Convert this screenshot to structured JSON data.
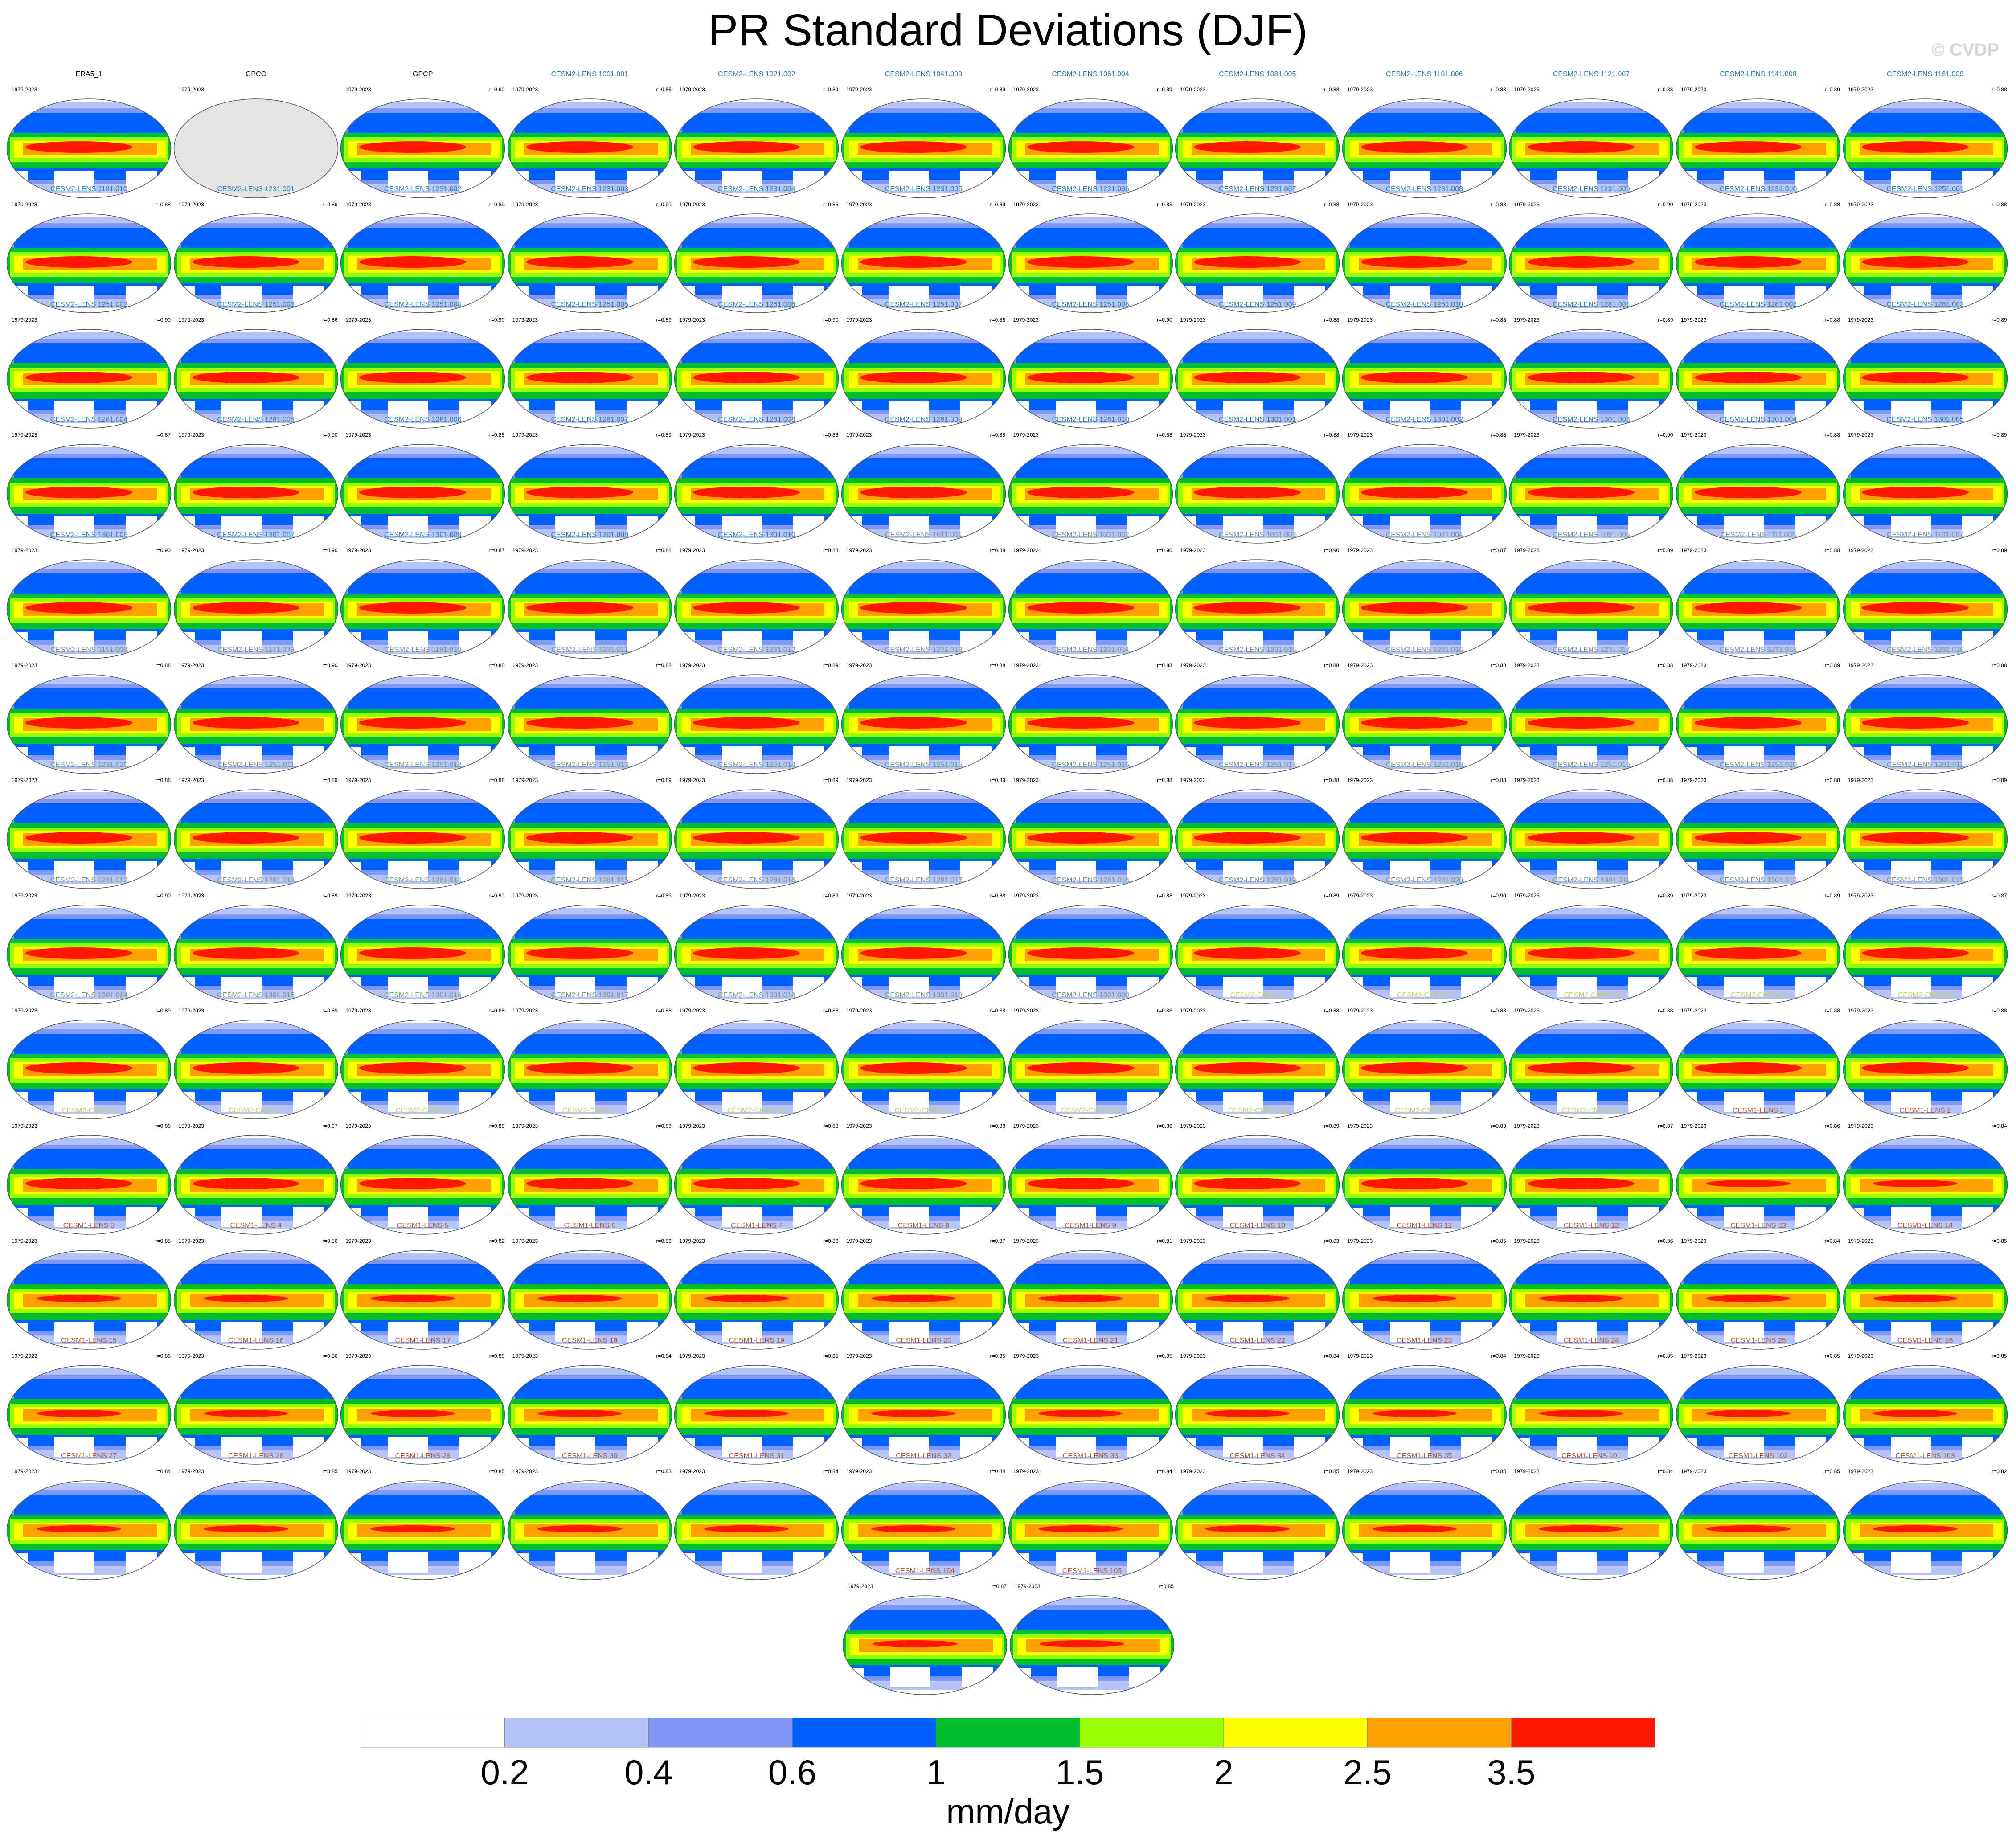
{
  "title": "PR Standard Deviations (DJF)",
  "watermark": "© CVDP",
  "colorbar": {
    "units": "mm/day",
    "tick_labels": [
      "0.2",
      "0.4",
      "0.6",
      "1",
      "1.5",
      "2",
      "2.5",
      "3.5"
    ],
    "colors": [
      "#ffffff",
      "#b4c4f8",
      "#7f98f8",
      "#0060ff",
      "#00c030",
      "#98ff00",
      "#ffff00",
      "#ffa000",
      "#ff1800"
    ]
  },
  "panel_defaults": {
    "years": "1979-2023"
  },
  "panels": [
    {
      "title": "ERA5_1",
      "r": "",
      "kind": "obs"
    },
    {
      "title": "GPCC",
      "r": "",
      "kind": "gpcc"
    },
    {
      "title": "GPCP",
      "r": "r=0.90",
      "kind": "obs"
    },
    {
      "title": "CESM2-LENS 1001.001",
      "r": "r=0.86",
      "kind": "cesm2"
    },
    {
      "title": "CESM2-LENS 1021.002",
      "r": "r=0.89",
      "kind": "cesm2"
    },
    {
      "title": "CESM2-LENS 1041.003",
      "r": "r=0.89",
      "kind": "cesm2"
    },
    {
      "title": "CESM2-LENS 1061.004",
      "r": "r=0.89",
      "kind": "cesm2"
    },
    {
      "title": "CESM2-LENS 1081.005",
      "r": "r=0.88",
      "kind": "cesm2"
    },
    {
      "title": "CESM2-LENS 1101.006",
      "r": "r=0.88",
      "kind": "cesm2"
    },
    {
      "title": "CESM2-LENS 1121.007",
      "r": "r=0.88",
      "kind": "cesm2"
    },
    {
      "title": "CESM2-LENS 1141.008",
      "r": "r=0.89",
      "kind": "cesm2"
    },
    {
      "title": "CESM2-LENS 1161.009",
      "r": "r=0.88",
      "kind": "cesm2"
    },
    {
      "title": "CESM2-LENS 1181.010",
      "r": "r=0.88",
      "kind": "cesm2"
    },
    {
      "title": "CESM2-LENS 1231.001",
      "r": "r=0.89",
      "kind": "cesm2"
    },
    {
      "title": "CESM2-LENS 1231.002",
      "r": "r=0.89",
      "kind": "cesm2"
    },
    {
      "title": "CESM2-LENS 1231.003",
      "r": "r=0.90",
      "kind": "cesm2"
    },
    {
      "title": "CESM2-LENS 1231.004",
      "r": "r=0.86",
      "kind": "cesm2"
    },
    {
      "title": "CESM2-LENS 1231.005",
      "r": "r=0.89",
      "kind": "cesm2"
    },
    {
      "title": "CESM2-LENS 1231.006",
      "r": "r=0.88",
      "kind": "cesm2"
    },
    {
      "title": "CESM2-LENS 1231.007",
      "r": "r=0.88",
      "kind": "cesm2"
    },
    {
      "title": "CESM2-LENS 1231.008",
      "r": "r=0.88",
      "kind": "cesm2"
    },
    {
      "title": "CESM2-LENS 1231.009",
      "r": "r=0.90",
      "kind": "cesm2"
    },
    {
      "title": "CESM2-LENS 1231.010",
      "r": "r=0.88",
      "kind": "cesm2"
    },
    {
      "title": "CESM2-LENS 1251.001",
      "r": "r=0.88",
      "kind": "cesm2"
    },
    {
      "title": "CESM2-LENS 1251.002",
      "r": "r=0.90",
      "kind": "cesm2"
    },
    {
      "title": "CESM2-LENS 1251.003",
      "r": "r=0.86",
      "kind": "cesm2"
    },
    {
      "title": "CESM2-LENS 1251.004",
      "r": "r=0.90",
      "kind": "cesm2"
    },
    {
      "title": "CESM2-LENS 1251.005",
      "r": "r=0.89",
      "kind": "cesm2"
    },
    {
      "title": "CESM2-LENS 1251.006",
      "r": "r=0.90",
      "kind": "cesm2"
    },
    {
      "title": "CESM2-LENS 1251.007",
      "r": "r=0.88",
      "kind": "cesm2"
    },
    {
      "title": "CESM2-LENS 1251.008",
      "r": "r=0.90",
      "kind": "cesm2"
    },
    {
      "title": "CESM2-LENS 1251.009",
      "r": "r=0.88",
      "kind": "cesm2"
    },
    {
      "title": "CESM2-LENS 1251.010",
      "r": "r=0.88",
      "kind": "cesm2"
    },
    {
      "title": "CESM2-LENS 1281.001",
      "r": "r=0.89",
      "kind": "cesm2"
    },
    {
      "title": "CESM2-LENS 1281.002",
      "r": "r=0.88",
      "kind": "cesm2"
    },
    {
      "title": "CESM2-LENS 1281.003",
      "r": "r=0.89",
      "kind": "cesm2"
    },
    {
      "title": "CESM2-LENS 1281.004",
      "r": "r=0.87",
      "kind": "cesm2"
    },
    {
      "title": "CESM2-LENS 1281.005",
      "r": "r=0.90",
      "kind": "cesm2"
    },
    {
      "title": "CESM2-LENS 1281.006",
      "r": "r=0.88",
      "kind": "cesm2"
    },
    {
      "title": "CESM2-LENS 1281.007",
      "r": "r=0.89",
      "kind": "cesm2"
    },
    {
      "title": "CESM2-LENS 1281.008",
      "r": "r=0.88",
      "kind": "cesm2"
    },
    {
      "title": "CESM2-LENS 1281.009",
      "r": "r=0.88",
      "kind": "cesm2"
    },
    {
      "title": "CESM2-LENS 1281.010",
      "r": "r=0.88",
      "kind": "cesm2"
    },
    {
      "title": "CESM2-LENS 1301.001",
      "r": "r=0.88",
      "kind": "cesm2"
    },
    {
      "title": "CESM2-LENS 1301.002",
      "r": "r=0.88",
      "kind": "cesm2"
    },
    {
      "title": "CESM2-LENS 1301.003",
      "r": "r=0.90",
      "kind": "cesm2"
    },
    {
      "title": "CESM2-LENS 1301.004",
      "r": "r=0.88",
      "kind": "cesm2"
    },
    {
      "title": "CESM2-LENS 1301.005",
      "r": "r=0.89",
      "kind": "cesm2"
    },
    {
      "title": "CESM2-LENS 1301.006",
      "r": "r=0.90",
      "kind": "cesm2"
    },
    {
      "title": "CESM2-LENS 1301.007",
      "r": "r=0.90",
      "kind": "cesm2"
    },
    {
      "title": "CESM2-LENS 1301.008",
      "r": "r=0.87",
      "kind": "cesm2"
    },
    {
      "title": "CESM2-LENS 1301.009",
      "r": "r=0.88",
      "kind": "cesm2"
    },
    {
      "title": "CESM2-LENS 1301.010",
      "r": "r=0.88",
      "kind": "cesm2"
    },
    {
      "title": "CESM2-LENS 1011.001",
      "r": "r=0.88",
      "kind": "smbb"
    },
    {
      "title": "CESM2-LENS 1031.002",
      "r": "r=0.90",
      "kind": "smbb"
    },
    {
      "title": "CESM2-LENS 1051.003",
      "r": "r=0.90",
      "kind": "smbb"
    },
    {
      "title": "CESM2-LENS 1071.004",
      "r": "r=0.87",
      "kind": "smbb"
    },
    {
      "title": "CESM2-LENS 1091.005",
      "r": "r=0.89",
      "kind": "smbb"
    },
    {
      "title": "CESM2-LENS 1111.006",
      "r": "r=0.88",
      "kind": "smbb"
    },
    {
      "title": "CESM2-LENS 1131.007",
      "r": "r=0.89",
      "kind": "smbb"
    },
    {
      "title": "CESM2-LENS 1151.008",
      "r": "r=0.88",
      "kind": "smbb"
    },
    {
      "title": "CESM2-LENS 1171.009",
      "r": "r=0.90",
      "kind": "smbb"
    },
    {
      "title": "CESM2-LENS 1191.010",
      "r": "r=0.88",
      "kind": "smbb"
    },
    {
      "title": "CESM2-LENS 1231.011",
      "r": "r=0.88",
      "kind": "smbb"
    },
    {
      "title": "CESM2-LENS 1231.012",
      "r": "r=0.89",
      "kind": "smbb"
    },
    {
      "title": "CESM2-LENS 1231.013",
      "r": "r=0.88",
      "kind": "smbb"
    },
    {
      "title": "CESM2-LENS 1231.014",
      "r": "r=0.88",
      "kind": "smbb"
    },
    {
      "title": "CESM2-LENS 1231.015",
      "r": "r=0.88",
      "kind": "smbb"
    },
    {
      "title": "CESM2-LENS 1231.016",
      "r": "r=0.88",
      "kind": "smbb"
    },
    {
      "title": "CESM2-LENS 1231.017",
      "r": "r=0.88",
      "kind": "smbb"
    },
    {
      "title": "CESM2-LENS 1231.018",
      "r": "r=0.89",
      "kind": "smbb"
    },
    {
      "title": "CESM2-LENS 1231.019",
      "r": "r=0.88",
      "kind": "smbb"
    },
    {
      "title": "CESM2-LENS 1231.020",
      "r": "r=0.88",
      "kind": "smbb"
    },
    {
      "title": "CESM2-LENS 1251.011",
      "r": "r=0.89",
      "kind": "smbb"
    },
    {
      "title": "CESM2-LENS 1251.012",
      "r": "r=0.88",
      "kind": "smbb"
    },
    {
      "title": "CESM2-LENS 1251.013",
      "r": "r=0.89",
      "kind": "smbb"
    },
    {
      "title": "CESM2-LENS 1251.014",
      "r": "r=0.89",
      "kind": "smbb"
    },
    {
      "title": "CESM2-LENS 1251.015",
      "r": "r=0.89",
      "kind": "smbb"
    },
    {
      "title": "CESM2-LENS 1251.016",
      "r": "r=0.88",
      "kind": "smbb"
    },
    {
      "title": "CESM2-LENS 1251.017",
      "r": "r=0.88",
      "kind": "smbb"
    },
    {
      "title": "CESM2-LENS 1251.018",
      "r": "r=0.88",
      "kind": "smbb"
    },
    {
      "title": "CESM2-LENS 1251.019",
      "r": "r=0.88",
      "kind": "smbb"
    },
    {
      "title": "CESM2-LENS 1251.020",
      "r": "r=0.88",
      "kind": "smbb"
    },
    {
      "title": "CESM2-LENS 1281.011",
      "r": "r=0.89",
      "kind": "smbb"
    },
    {
      "title": "CESM2-LENS 1281.012",
      "r": "r=0.90",
      "kind": "smbb"
    },
    {
      "title": "CESM2-LENS 1281.013",
      "r": "r=0.89",
      "kind": "smbb"
    },
    {
      "title": "CESM2-LENS 1281.014",
      "r": "r=0.90",
      "kind": "smbb"
    },
    {
      "title": "CESM2-LENS 1281.015",
      "r": "r=0.89",
      "kind": "smbb"
    },
    {
      "title": "CESM2-LENS 1281.016",
      "r": "r=0.89",
      "kind": "smbb"
    },
    {
      "title": "CESM2-LENS 1281.017",
      "r": "r=0.88",
      "kind": "smbb"
    },
    {
      "title": "CESM2-LENS 1281.018",
      "r": "r=0.88",
      "kind": "smbb"
    },
    {
      "title": "CESM2-LENS 1281.019",
      "r": "r=0.89",
      "kind": "smbb"
    },
    {
      "title": "CESM2-LENS 1281.020",
      "r": "r=0.90",
      "kind": "smbb"
    },
    {
      "title": "CESM2-LENS 1301.011",
      "r": "r=0.89",
      "kind": "smbb"
    },
    {
      "title": "CESM2-LENS 1301.012",
      "r": "r=0.89",
      "kind": "smbb"
    },
    {
      "title": "CESM2-LENS 1301.013",
      "r": "r=0.87",
      "kind": "smbb"
    },
    {
      "title": "CESM2-LENS 1301.014",
      "r": "r=0.89",
      "kind": "smbb"
    },
    {
      "title": "CESM2-LENS 1301.015",
      "r": "r=0.89",
      "kind": "smbb"
    },
    {
      "title": "CESM2-LENS 1301.016",
      "r": "r=0.88",
      "kind": "smbb"
    },
    {
      "title": "CESM2-LENS 1301.017",
      "r": "r=0.88",
      "kind": "smbb"
    },
    {
      "title": "CESM2-LENS 1301.018",
      "r": "r=0.88",
      "kind": "smbb"
    },
    {
      "title": "CESM2-LENS 1301.019",
      "r": "r=0.88",
      "kind": "smbb"
    },
    {
      "title": "CESM2-LENS 1301.020",
      "r": "r=0.88",
      "kind": "smbb"
    },
    {
      "title": "CESM2-CMIP6 1",
      "r": "r=0.88",
      "kind": "cmip6"
    },
    {
      "title": "CESM2-CMIP6 2",
      "r": "r=0.88",
      "kind": "cmip6"
    },
    {
      "title": "CESM2-CMIP6 3",
      "r": "r=0.88",
      "kind": "cmip6"
    },
    {
      "title": "CESM2-CMIP6 4",
      "r": "r=0.88",
      "kind": "cmip6"
    },
    {
      "title": "CESM2-CMIP6 5",
      "r": "r=0.88",
      "kind": "cmip6"
    },
    {
      "title": "CESM2-CMIP6 6",
      "r": "r=0.88",
      "kind": "cmip6"
    },
    {
      "title": "CESM2-CMIP6 7",
      "r": "r=0.87",
      "kind": "cmip6"
    },
    {
      "title": "CESM2-CMIP6 8",
      "r": "r=0.88",
      "kind": "cmip6"
    },
    {
      "title": "CESM2-CMIP6 9",
      "r": "r=0.88",
      "kind": "cmip6"
    },
    {
      "title": "CESM2-CMIP6 10",
      "r": "r=0.88",
      "kind": "cmip6"
    },
    {
      "title": "CESM2-CMIP6 11",
      "r": "r=0.88",
      "kind": "cmip6"
    },
    {
      "title": "CESM2-CMIP6 12",
      "r": "r=0.86",
      "kind": "cmip6"
    },
    {
      "title": "CESM2-CMIP6 13",
      "r": "r=0.89",
      "kind": "cmip6"
    },
    {
      "title": "CESM2-CMIP6 14",
      "r": "r=0.89",
      "kind": "cmip6"
    },
    {
      "title": "CESM2-CMIP6 15",
      "r": "r=0.87",
      "kind": "cmip6"
    },
    {
      "title": "CESM1-LENS 1",
      "r": "r=0.86",
      "kind": "cesm1"
    },
    {
      "title": "CESM1-LENS 2",
      "r": "r=0.84",
      "kind": "cesm1"
    },
    {
      "title": "CESM1-LENS 3",
      "r": "r=0.85",
      "kind": "cesm1"
    },
    {
      "title": "CESM1-LENS 4",
      "r": "r=0.86",
      "kind": "cesm1"
    },
    {
      "title": "CESM1-LENS 5",
      "r": "r=0.82",
      "kind": "cesm1"
    },
    {
      "title": "CESM1-LENS 6",
      "r": "r=0.86",
      "kind": "cesm1"
    },
    {
      "title": "CESM1-LENS 7",
      "r": "r=0.86",
      "kind": "cesm1"
    },
    {
      "title": "CESM1-LENS 8",
      "r": "r=0.87",
      "kind": "cesm1"
    },
    {
      "title": "CESM1-LENS 9",
      "r": "r=0.81",
      "kind": "cesm1"
    },
    {
      "title": "CESM1-LENS 10",
      "r": "r=0.83",
      "kind": "cesm1"
    },
    {
      "title": "CESM1-LENS 11",
      "r": "r=0.85",
      "kind": "cesm1"
    },
    {
      "title": "CESM1-LENS 12",
      "r": "r=0.86",
      "kind": "cesm1"
    },
    {
      "title": "CESM1-LENS 13",
      "r": "r=0.84",
      "kind": "cesm1"
    },
    {
      "title": "CESM1-LENS 14",
      "r": "r=0.85",
      "kind": "cesm1"
    },
    {
      "title": "CESM1-LENS 15",
      "r": "r=0.85",
      "kind": "cesm1"
    },
    {
      "title": "CESM1-LENS 16",
      "r": "r=0.86",
      "kind": "cesm1"
    },
    {
      "title": "CESM1-LENS 17",
      "r": "r=0.85",
      "kind": "cesm1"
    },
    {
      "title": "CESM1-LENS 18",
      "r": "r=0.84",
      "kind": "cesm1"
    },
    {
      "title": "CESM1-LENS 19",
      "r": "r=0.85",
      "kind": "cesm1"
    },
    {
      "title": "CESM1-LENS 20",
      "r": "r=0.85",
      "kind": "cesm1"
    },
    {
      "title": "CESM1-LENS 21",
      "r": "r=0.85",
      "kind": "cesm1"
    },
    {
      "title": "CESM1-LENS 22",
      "r": "r=0.84",
      "kind": "cesm1"
    },
    {
      "title": "CESM1-LENS 23",
      "r": "r=0.84",
      "kind": "cesm1"
    },
    {
      "title": "CESM1-LENS 24",
      "r": "r=0.85",
      "kind": "cesm1"
    },
    {
      "title": "CESM1-LENS 25",
      "r": "r=0.85",
      "kind": "cesm1"
    },
    {
      "title": "CESM1-LENS 26",
      "r": "r=0.85",
      "kind": "cesm1"
    },
    {
      "title": "CESM1-LENS 27",
      "r": "r=0.84",
      "kind": "cesm1"
    },
    {
      "title": "CESM1-LENS 28",
      "r": "r=0.85",
      "kind": "cesm1"
    },
    {
      "title": "CESM1-LENS 29",
      "r": "r=0.85",
      "kind": "cesm1"
    },
    {
      "title": "CESM1-LENS 30",
      "r": "r=0.83",
      "kind": "cesm1"
    },
    {
      "title": "CESM1-LENS 31",
      "r": "r=0.84",
      "kind": "cesm1"
    },
    {
      "title": "CESM1-LENS 32",
      "r": "r=0.84",
      "kind": "cesm1"
    },
    {
      "title": "CESM1-LENS 33",
      "r": "r=0.84",
      "kind": "cesm1"
    },
    {
      "title": "CESM1-LENS 34",
      "r": "r=0.85",
      "kind": "cesm1"
    },
    {
      "title": "CESM1-LENS 35",
      "r": "r=0.85",
      "kind": "cesm1"
    },
    {
      "title": "CESM1-LENS 101",
      "r": "r=0.84",
      "kind": "cesm1"
    },
    {
      "title": "CESM1-LENS 102",
      "r": "r=0.85",
      "kind": "cesm1"
    },
    {
      "title": "CESM1-LENS 103",
      "r": "r=0.82",
      "kind": "cesm1"
    },
    {
      "title": "CESM1-LENS 104",
      "r": "r=0.87",
      "kind": "cesm1"
    },
    {
      "title": "CESM1-LENS 105",
      "r": "r=0.85",
      "kind": "cesm1"
    }
  ],
  "title_colors": {
    "obs": "#000000",
    "gpcc": "#000000",
    "cesm2": "#2f7f9e",
    "smbb": "#6f9a7f",
    "cmip6": "#c8c86a",
    "cesm1": "#b5542a"
  }
}
